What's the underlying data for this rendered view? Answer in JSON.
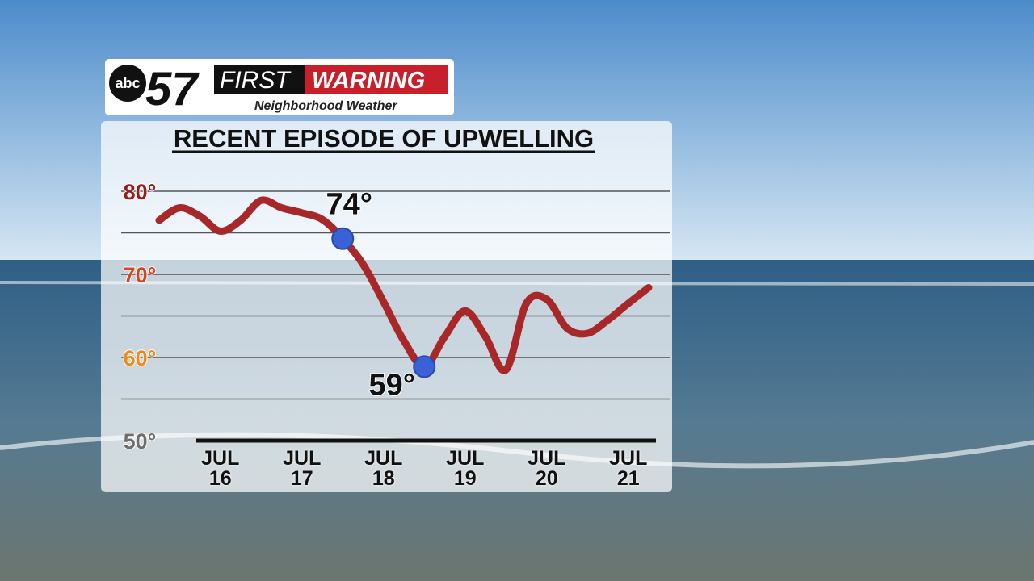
{
  "logo": {
    "network": "abc",
    "channel": "57",
    "first": "FIRST",
    "warning": "WARNING",
    "tagline": "Neighborhood Weather"
  },
  "chart_data": {
    "type": "line",
    "title": "RECENT EPISODE OF UPWELLING",
    "categories": [
      null,
      null,
      null,
      "JUL 16",
      null,
      null,
      null,
      "JUL 17",
      null,
      null,
      null,
      "JUL 18",
      null,
      null,
      null,
      "JUL 19",
      null,
      null,
      null,
      "JUL 20",
      null,
      null,
      null,
      "JUL 21",
      null
    ],
    "series": [
      {
        "color": "#a8282a",
        "values": [
          76.5,
          78.0,
          77.0,
          75.2,
          76.5,
          78.9,
          78.0,
          77.4,
          76.6,
          74.3,
          71.2,
          66.7,
          62.0,
          58.9,
          62.5,
          65.6,
          62.5,
          58.5,
          66.5,
          67.0,
          63.5,
          62.9,
          64.5,
          66.5,
          68.4
        ],
        "value_labels": [
          null,
          null,
          null,
          null,
          null,
          null,
          null,
          null,
          null,
          "74°",
          null,
          null,
          null,
          "59°",
          null,
          null,
          null,
          null,
          null,
          null,
          null,
          null,
          null,
          null,
          null
        ],
        "marker_color": "#3a62d6"
      }
    ],
    "ylim": [
      50,
      80
    ],
    "yticks": [
      {
        "value": 50,
        "label": "50°",
        "color": "#6e6e6e"
      },
      {
        "value": 55,
        "label": null
      },
      {
        "value": 60,
        "label": "60°",
        "color": "#f08a1c"
      },
      {
        "value": 65,
        "label": null
      },
      {
        "value": 70,
        "label": "70°",
        "color": "#d8441f"
      },
      {
        "value": 75,
        "label": null
      },
      {
        "value": 80,
        "label": "80°",
        "color": "#9b1c1c"
      }
    ],
    "grid": true
  }
}
